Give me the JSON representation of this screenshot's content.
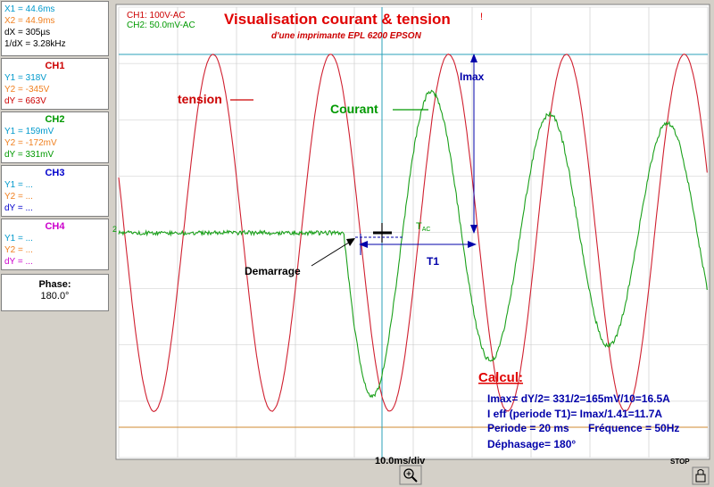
{
  "cursors": {
    "x1": "X1 = 44.6ms",
    "x2": "X2 = 44.9ms",
    "dx": "dX = 305µs",
    "inv_dx": "1/dX = 3.28kHz"
  },
  "channels": [
    {
      "name": "CH1",
      "y1": "Y1 = 318V",
      "y2": "Y2 = -345V",
      "dy": "dY = 663V",
      "color": "#cc0000"
    },
    {
      "name": "CH2",
      "y1": "Y1 = 159mV",
      "y2": "Y2 = -172mV",
      "dy": "dY = 331mV",
      "color": "#009900"
    },
    {
      "name": "CH3",
      "y1": "Y1 = ...",
      "y2": "Y2 = ...",
      "dy": "dY = ...",
      "color": "#0000cc"
    },
    {
      "name": "CH4",
      "y1": "Y1 = ...",
      "y2": "Y2 = ...",
      "dy": "dY = ...",
      "color": "#cc00cc"
    }
  ],
  "phase": {
    "label": "Phase:",
    "value": "180.0°"
  },
  "scope": {
    "ch1_setting": "CH1: 100V-AC",
    "ch2_setting": "CH2: 50.0mV-AC",
    "title": "Visualisation courant & tension",
    "subtitle": "d'une imprimante EPL 6200 EPSON",
    "timebase": "10.0ms/div",
    "stop": "STOP"
  },
  "annotations": {
    "tension": "tension",
    "courant": "Courant",
    "imax": "Imax",
    "tac": "T",
    "tac_sub": "AC",
    "t1": "T1",
    "demarrage": "Demarrage",
    "calcul": "Calcul:",
    "line1": "Imax= dY/2= 331/2=165mV/10=16.5A",
    "line2": "I eff (periode T1)= Imax/1.41=11.7A",
    "line3a": "Periode = 20 ms",
    "line3b": "Fréquence = 50Hz",
    "line4": "Déphasage= 180°"
  },
  "chart_data": {
    "type": "line",
    "x_unit": "ms",
    "x_div": 10,
    "series": [
      {
        "name": "tension",
        "color": "#cc0000",
        "kind": "voltage",
        "period_ms": 20,
        "amplitude_V": 331
      },
      {
        "name": "Courant",
        "color": "#009900",
        "kind": "current",
        "start_ms": 38.2,
        "peak_mV": 165,
        "period_ms": 20
      }
    ]
  }
}
